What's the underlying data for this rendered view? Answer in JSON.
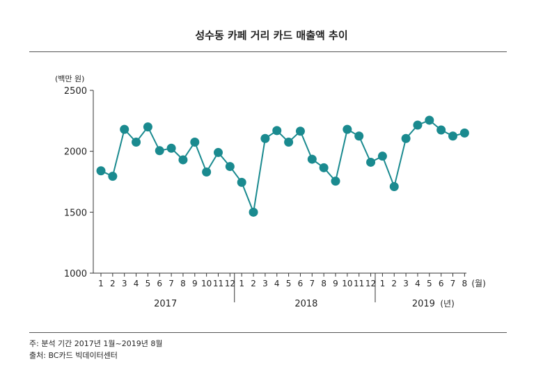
{
  "title": "성수동 카페 거리 카드 매출액 추이",
  "chart_data": {
    "type": "line",
    "title": "성수동 카페 거리 카드 매출액 추이",
    "ylabel": "(백만 원)",
    "xlabel": "",
    "x_unit_label": "(월)",
    "year_unit_label": "(년)",
    "ylim": [
      1000,
      2500
    ],
    "yticks": [
      1000,
      1500,
      2000,
      2500
    ],
    "grid": false,
    "color": "#1a8a8f",
    "groups": [
      {
        "year": "2017",
        "months": [
          "1",
          "2",
          "3",
          "4",
          "5",
          "6",
          "7",
          "8",
          "9",
          "10",
          "11",
          "12"
        ]
      },
      {
        "year": "2018",
        "months": [
          "1",
          "2",
          "3",
          "4",
          "5",
          "6",
          "7",
          "8",
          "9",
          "10",
          "11",
          "12"
        ]
      },
      {
        "year": "2019",
        "months": [
          "1",
          "2",
          "3",
          "4",
          "5",
          "6",
          "7",
          "8"
        ]
      }
    ],
    "values": [
      1840,
      1795,
      2180,
      2075,
      2200,
      2005,
      2025,
      1930,
      2075,
      1830,
      1990,
      1875,
      1745,
      1500,
      2105,
      2170,
      2075,
      2165,
      1935,
      1865,
      1755,
      2180,
      2125,
      1910,
      1960,
      1710,
      2105,
      2215,
      2255,
      2175,
      2125,
      2150
    ]
  },
  "notes": {
    "period": "주: 분석 기간 2017년 1월~2019년 8월",
    "source": "출처: BC카드 빅데이터센터"
  }
}
